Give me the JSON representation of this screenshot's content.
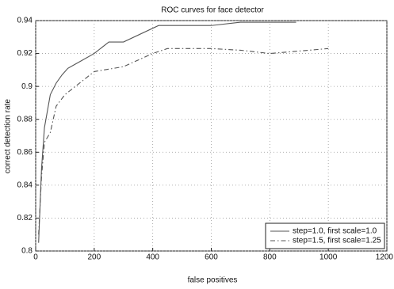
{
  "chart_data": {
    "type": "line",
    "title": "ROC curves for face detector",
    "x_label": "false positives",
    "y_label": "correct detection rate",
    "xlim": [
      0,
      1200
    ],
    "xticks": [
      0,
      200,
      400,
      600,
      800,
      1000,
      1200
    ],
    "ylim": [
      0.8,
      0.94
    ],
    "yticks": [
      0.8,
      0.82,
      0.84,
      0.86,
      0.88,
      0.9,
      0.92,
      0.94
    ],
    "grid": true,
    "legend": "lower right",
    "series": [
      {
        "name": "step=1.0, first scale=1.0",
        "color": "#555555",
        "style": "solid",
        "x": [
          10,
          20,
          30,
          50,
          70,
          90,
          110,
          130,
          150,
          200,
          250,
          300,
          420,
          600,
          700,
          890
        ],
        "values": [
          0.805,
          0.85,
          0.875,
          0.895,
          0.902,
          0.907,
          0.911,
          0.913,
          0.915,
          0.92,
          0.927,
          0.927,
          0.937,
          0.937,
          0.939,
          0.939
        ]
      },
      {
        "name": "step=1.5, first scale=1.25",
        "color": "#555555",
        "style": "dashdot",
        "x": [
          10,
          20,
          30,
          50,
          70,
          100,
          150,
          200,
          300,
          400,
          450,
          600,
          700,
          800,
          1000
        ],
        "values": [
          0.81,
          0.845,
          0.866,
          0.872,
          0.888,
          0.895,
          0.902,
          0.909,
          0.912,
          0.92,
          0.923,
          0.923,
          0.922,
          0.92,
          0.923
        ]
      }
    ]
  }
}
